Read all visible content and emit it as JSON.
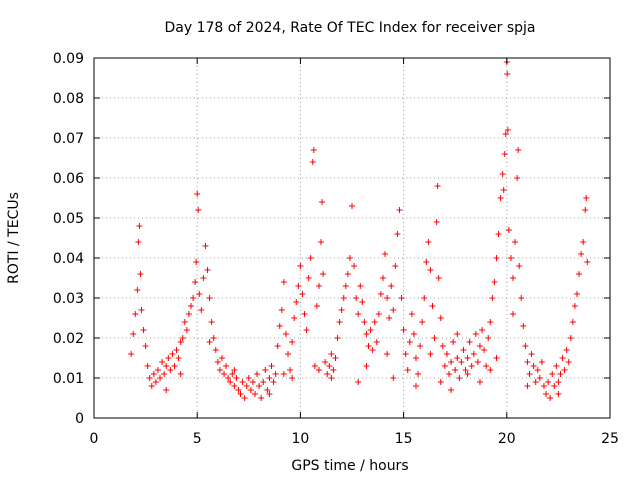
{
  "chart_data": {
    "type": "scatter",
    "title": "Day 178 of 2024, Rate Of TEC Index for receiver spja",
    "xlabel": "GPS time / hours",
    "ylabel": "ROTI / TECUs",
    "xlim": [
      0,
      25
    ],
    "ylim": [
      0,
      0.09
    ],
    "xticks": [
      0,
      5,
      10,
      15,
      20,
      25
    ],
    "xtick_labels": [
      "0",
      "5",
      "10",
      "15",
      "20",
      "25"
    ],
    "yticks": [
      0,
      0.01,
      0.02,
      0.03,
      0.04,
      0.05,
      0.06,
      0.07,
      0.08,
      0.09
    ],
    "ytick_labels": [
      "0",
      "0.01",
      "0.02",
      "0.03",
      "0.04",
      "0.05",
      "0.06",
      "0.07",
      "0.08",
      "0.09"
    ],
    "grid": true,
    "marker": "+",
    "color": "#ff0000",
    "series": [
      {
        "name": "ROTI",
        "points": [
          [
            1.8,
            0.016
          ],
          [
            1.9,
            0.021
          ],
          [
            2.0,
            0.026
          ],
          [
            2.1,
            0.032
          ],
          [
            2.15,
            0.044
          ],
          [
            2.2,
            0.048
          ],
          [
            2.25,
            0.036
          ],
          [
            2.3,
            0.027
          ],
          [
            2.4,
            0.022
          ],
          [
            2.5,
            0.018
          ],
          [
            2.6,
            0.013
          ],
          [
            2.7,
            0.01
          ],
          [
            2.8,
            0.008
          ],
          [
            2.9,
            0.011
          ],
          [
            3.0,
            0.009
          ],
          [
            3.1,
            0.012
          ],
          [
            3.2,
            0.01
          ],
          [
            3.3,
            0.014
          ],
          [
            3.4,
            0.011
          ],
          [
            3.5,
            0.013
          ],
          [
            3.6,
            0.015
          ],
          [
            3.7,
            0.012
          ],
          [
            3.8,
            0.016
          ],
          [
            3.9,
            0.013
          ],
          [
            4.0,
            0.017
          ],
          [
            4.1,
            0.015
          ],
          [
            4.2,
            0.019
          ],
          [
            4.3,
            0.02
          ],
          [
            4.4,
            0.024
          ],
          [
            4.5,
            0.022
          ],
          [
            4.6,
            0.026
          ],
          [
            4.7,
            0.028
          ],
          [
            4.8,
            0.03
          ],
          [
            4.9,
            0.034
          ],
          [
            4.95,
            0.039
          ],
          [
            5.0,
            0.056
          ],
          [
            5.05,
            0.052
          ],
          [
            5.1,
            0.031
          ],
          [
            5.2,
            0.027
          ],
          [
            5.3,
            0.035
          ],
          [
            5.4,
            0.043
          ],
          [
            5.5,
            0.037
          ],
          [
            5.6,
            0.03
          ],
          [
            5.7,
            0.024
          ],
          [
            5.8,
            0.02
          ],
          [
            5.9,
            0.017
          ],
          [
            6.0,
            0.014
          ],
          [
            6.1,
            0.012
          ],
          [
            6.2,
            0.015
          ],
          [
            6.3,
            0.011
          ],
          [
            6.4,
            0.013
          ],
          [
            6.5,
            0.01
          ],
          [
            6.6,
            0.009
          ],
          [
            6.7,
            0.011
          ],
          [
            6.8,
            0.008
          ],
          [
            6.9,
            0.01
          ],
          [
            7.0,
            0.007
          ],
          [
            7.1,
            0.006
          ],
          [
            7.2,
            0.009
          ],
          [
            7.3,
            0.005
          ],
          [
            7.4,
            0.008
          ],
          [
            7.5,
            0.01
          ],
          [
            7.6,
            0.007
          ],
          [
            7.7,
            0.009
          ],
          [
            7.8,
            0.006
          ],
          [
            7.9,
            0.011
          ],
          [
            8.0,
            0.008
          ],
          [
            8.1,
            0.005
          ],
          [
            8.2,
            0.009
          ],
          [
            8.3,
            0.012
          ],
          [
            8.4,
            0.007
          ],
          [
            8.5,
            0.01
          ],
          [
            8.6,
            0.013
          ],
          [
            8.7,
            0.009
          ],
          [
            8.8,
            0.011
          ],
          [
            8.9,
            0.018
          ],
          [
            9.0,
            0.023
          ],
          [
            9.1,
            0.027
          ],
          [
            9.2,
            0.034
          ],
          [
            9.3,
            0.021
          ],
          [
            9.4,
            0.016
          ],
          [
            9.5,
            0.012
          ],
          [
            9.6,
            0.019
          ],
          [
            9.7,
            0.025
          ],
          [
            9.8,
            0.029
          ],
          [
            9.9,
            0.033
          ],
          [
            10.0,
            0.038
          ],
          [
            10.1,
            0.031
          ],
          [
            10.2,
            0.026
          ],
          [
            10.3,
            0.022
          ],
          [
            10.4,
            0.035
          ],
          [
            10.5,
            0.04
          ],
          [
            10.6,
            0.064
          ],
          [
            10.65,
            0.067
          ],
          [
            10.7,
            0.013
          ],
          [
            10.8,
            0.028
          ],
          [
            10.9,
            0.033
          ],
          [
            11.0,
            0.044
          ],
          [
            11.05,
            0.054
          ],
          [
            11.1,
            0.036
          ],
          [
            11.2,
            0.014
          ],
          [
            11.3,
            0.011
          ],
          [
            11.4,
            0.013
          ],
          [
            11.5,
            0.01
          ],
          [
            11.6,
            0.012
          ],
          [
            11.7,
            0.015
          ],
          [
            11.8,
            0.02
          ],
          [
            11.9,
            0.024
          ],
          [
            12.0,
            0.027
          ],
          [
            12.1,
            0.03
          ],
          [
            12.2,
            0.033
          ],
          [
            12.3,
            0.036
          ],
          [
            12.4,
            0.04
          ],
          [
            12.5,
            0.053
          ],
          [
            12.6,
            0.038
          ],
          [
            12.7,
            0.03
          ],
          [
            12.8,
            0.026
          ],
          [
            12.9,
            0.033
          ],
          [
            13.0,
            0.029
          ],
          [
            13.1,
            0.024
          ],
          [
            13.2,
            0.021
          ],
          [
            13.3,
            0.018
          ],
          [
            13.4,
            0.022
          ],
          [
            13.5,
            0.017
          ],
          [
            13.6,
            0.024
          ],
          [
            13.7,
            0.019
          ],
          [
            13.8,
            0.026
          ],
          [
            13.9,
            0.031
          ],
          [
            14.0,
            0.035
          ],
          [
            14.1,
            0.041
          ],
          [
            14.2,
            0.03
          ],
          [
            14.3,
            0.025
          ],
          [
            14.4,
            0.033
          ],
          [
            14.5,
            0.027
          ],
          [
            14.6,
            0.038
          ],
          [
            14.7,
            0.046
          ],
          [
            14.8,
            0.052
          ],
          [
            14.9,
            0.03
          ],
          [
            15.0,
            0.022
          ],
          [
            15.1,
            0.016
          ],
          [
            15.2,
            0.012
          ],
          [
            15.3,
            0.019
          ],
          [
            15.4,
            0.026
          ],
          [
            15.5,
            0.021
          ],
          [
            15.6,
            0.015
          ],
          [
            15.7,
            0.011
          ],
          [
            15.8,
            0.018
          ],
          [
            15.9,
            0.024
          ],
          [
            16.0,
            0.03
          ],
          [
            16.1,
            0.039
          ],
          [
            16.2,
            0.044
          ],
          [
            16.3,
            0.037
          ],
          [
            16.4,
            0.028
          ],
          [
            16.5,
            0.02
          ],
          [
            16.6,
            0.049
          ],
          [
            16.65,
            0.058
          ],
          [
            16.7,
            0.035
          ],
          [
            16.8,
            0.025
          ],
          [
            16.9,
            0.018
          ],
          [
            17.0,
            0.013
          ],
          [
            17.1,
            0.016
          ],
          [
            17.2,
            0.011
          ],
          [
            17.3,
            0.014
          ],
          [
            17.4,
            0.019
          ],
          [
            17.5,
            0.012
          ],
          [
            17.6,
            0.015
          ],
          [
            17.7,
            0.01
          ],
          [
            17.8,
            0.014
          ],
          [
            17.9,
            0.017
          ],
          [
            18.0,
            0.012
          ],
          [
            18.1,
            0.015
          ],
          [
            18.2,
            0.019
          ],
          [
            18.3,
            0.013
          ],
          [
            18.4,
            0.016
          ],
          [
            18.5,
            0.021
          ],
          [
            18.6,
            0.014
          ],
          [
            18.7,
            0.018
          ],
          [
            18.8,
            0.022
          ],
          [
            18.9,
            0.017
          ],
          [
            19.0,
            0.013
          ],
          [
            19.1,
            0.02
          ],
          [
            19.2,
            0.024
          ],
          [
            19.3,
            0.03
          ],
          [
            19.4,
            0.034
          ],
          [
            19.5,
            0.04
          ],
          [
            19.6,
            0.046
          ],
          [
            19.7,
            0.055
          ],
          [
            19.8,
            0.061
          ],
          [
            19.85,
            0.057
          ],
          [
            19.9,
            0.066
          ],
          [
            19.95,
            0.071
          ],
          [
            20.0,
            0.089
          ],
          [
            20.02,
            0.086
          ],
          [
            20.05,
            0.072
          ],
          [
            20.1,
            0.047
          ],
          [
            20.2,
            0.04
          ],
          [
            20.3,
            0.035
          ],
          [
            20.4,
            0.044
          ],
          [
            20.5,
            0.06
          ],
          [
            20.55,
            0.067
          ],
          [
            20.6,
            0.038
          ],
          [
            20.7,
            0.03
          ],
          [
            20.8,
            0.023
          ],
          [
            20.9,
            0.018
          ],
          [
            21.0,
            0.014
          ],
          [
            21.1,
            0.011
          ],
          [
            21.2,
            0.016
          ],
          [
            21.3,
            0.013
          ],
          [
            21.4,
            0.009
          ],
          [
            21.5,
            0.012
          ],
          [
            21.6,
            0.01
          ],
          [
            21.7,
            0.014
          ],
          [
            21.8,
            0.008
          ],
          [
            21.9,
            0.006
          ],
          [
            22.0,
            0.009
          ],
          [
            22.1,
            0.005
          ],
          [
            22.2,
            0.011
          ],
          [
            22.3,
            0.008
          ],
          [
            22.4,
            0.013
          ],
          [
            22.5,
            0.009
          ],
          [
            22.6,
            0.011
          ],
          [
            22.7,
            0.015
          ],
          [
            22.8,
            0.012
          ],
          [
            22.9,
            0.017
          ],
          [
            23.0,
            0.014
          ],
          [
            23.1,
            0.02
          ],
          [
            23.2,
            0.024
          ],
          [
            23.3,
            0.028
          ],
          [
            23.4,
            0.031
          ],
          [
            23.5,
            0.036
          ],
          [
            23.6,
            0.041
          ],
          [
            23.7,
            0.044
          ],
          [
            23.8,
            0.052
          ],
          [
            23.85,
            0.055
          ],
          [
            23.9,
            0.039
          ],
          [
            3.5,
            0.007
          ],
          [
            4.2,
            0.011
          ],
          [
            6.8,
            0.012
          ],
          [
            8.5,
            0.006
          ],
          [
            9.6,
            0.01
          ],
          [
            11.5,
            0.016
          ],
          [
            13.2,
            0.013
          ],
          [
            14.5,
            0.01
          ],
          [
            15.6,
            0.008
          ],
          [
            17.3,
            0.007
          ],
          [
            18.7,
            0.009
          ],
          [
            19.5,
            0.015
          ],
          [
            21.0,
            0.008
          ],
          [
            22.5,
            0.006
          ],
          [
            12.8,
            0.009
          ],
          [
            14.2,
            0.016
          ],
          [
            16.8,
            0.009
          ],
          [
            18.1,
            0.011
          ],
          [
            19.2,
            0.012
          ],
          [
            20.3,
            0.026
          ],
          [
            5.6,
            0.019
          ],
          [
            9.2,
            0.011
          ],
          [
            10.9,
            0.012
          ],
          [
            16.3,
            0.016
          ],
          [
            17.6,
            0.021
          ]
        ]
      }
    ]
  }
}
